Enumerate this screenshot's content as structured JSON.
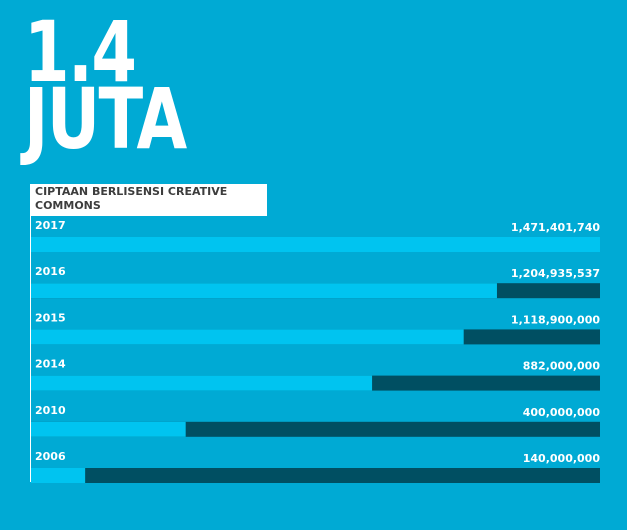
{
  "headline": {
    "line1": "1.4",
    "line2": "JUTA"
  },
  "colors": {
    "background": "#00aad4",
    "bar_fill": "#00c4f0",
    "bar_track": "#004f62",
    "text": "#ffffff",
    "label_text": "#3d3d3d"
  },
  "chart_data": {
    "type": "bar",
    "orientation": "horizontal",
    "title": "CIPTAAN BERLISENSI CREATIVE\nCOMMONS",
    "categories": [
      "2017",
      "2016",
      "2015",
      "2014",
      "2010",
      "2006"
    ],
    "values": [
      1471401740,
      1204935537,
      1118900000,
      882000000,
      400000000,
      140000000
    ],
    "value_labels": [
      "1,471,401,740",
      "1,204,935,537",
      "1,118,900,000",
      "882,000,000",
      "400,000,000",
      "140,000,000"
    ],
    "xlim": [
      0,
      1471401740
    ],
    "grid": false,
    "legend": "none"
  }
}
